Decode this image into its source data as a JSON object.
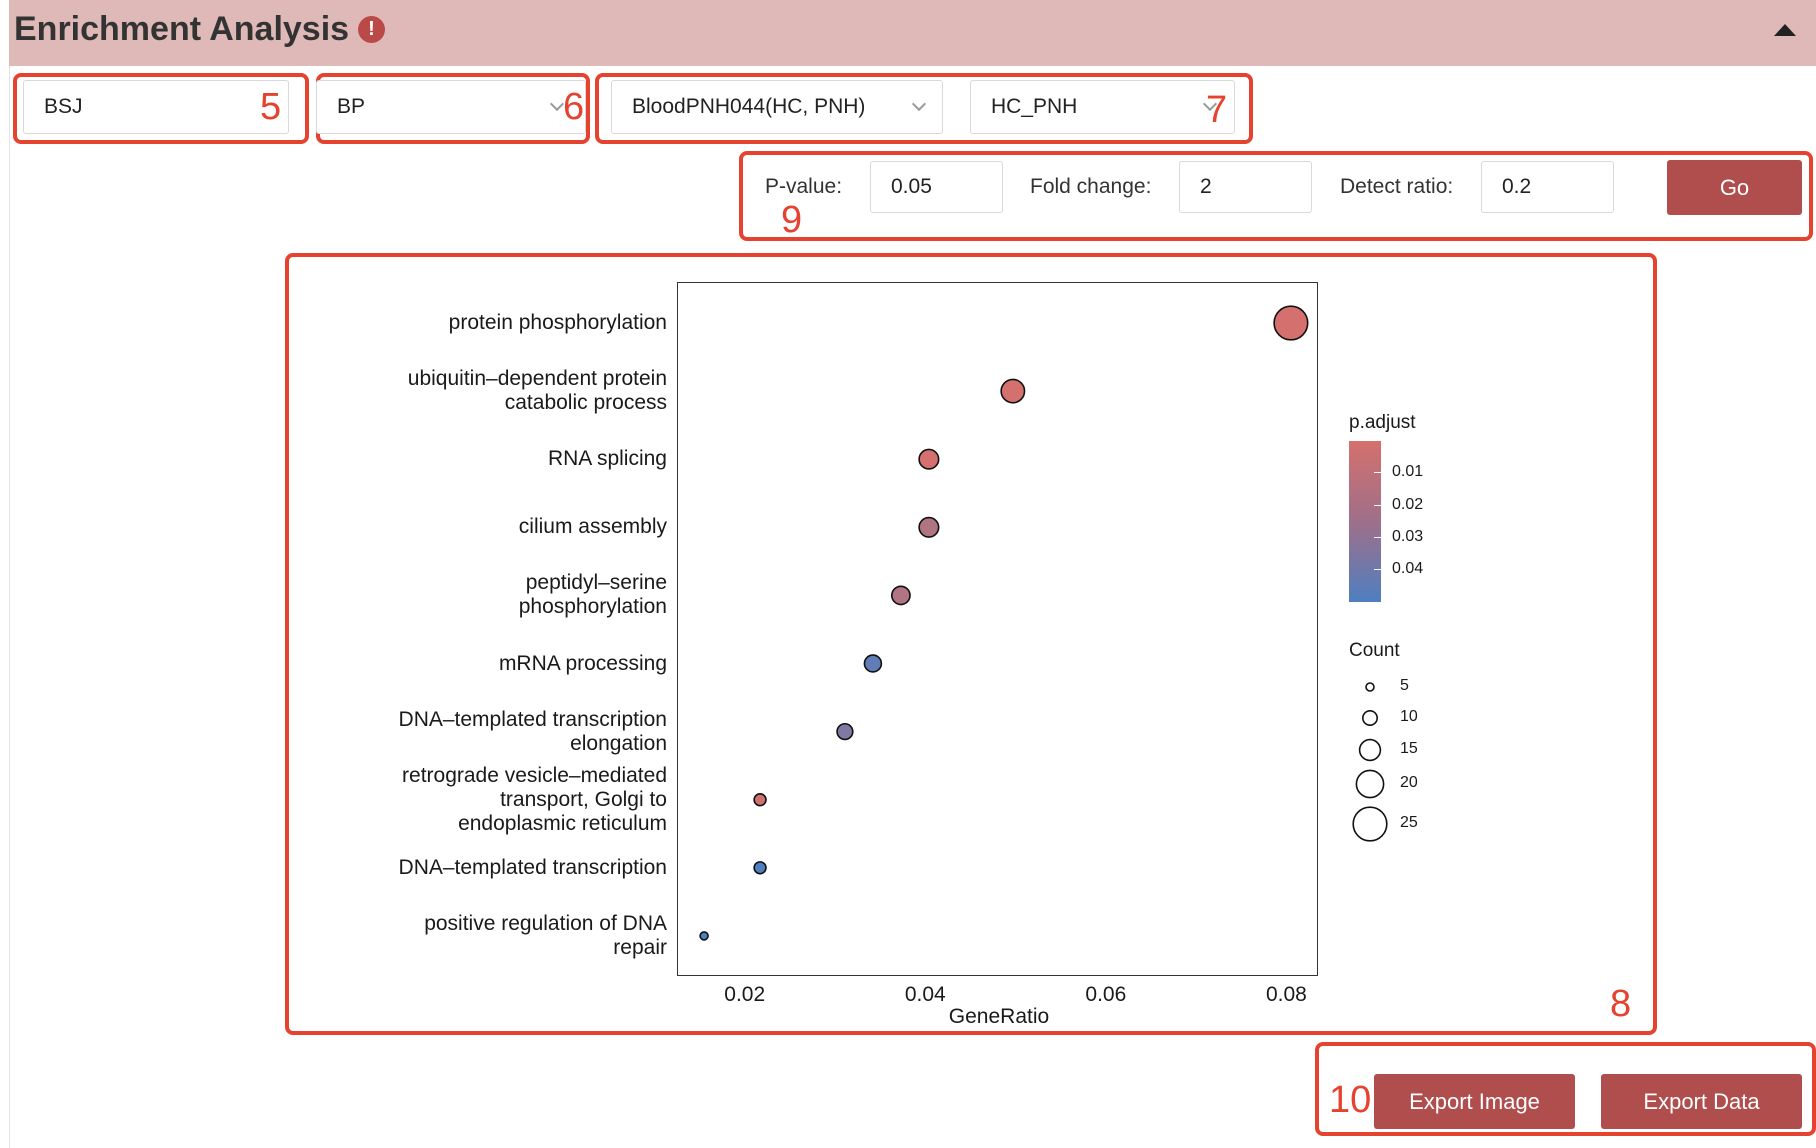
{
  "header": {
    "title": "Enrichment Analysis",
    "warn_glyph": "!"
  },
  "selects": {
    "type": "BSJ",
    "ontology": "BP",
    "dataset": "BloodPNH044(HC, PNH)",
    "comparison": "HC_PNH"
  },
  "filters": {
    "pvalue_label": "P-value:",
    "pvalue": "0.05",
    "fold_label": "Fold change:",
    "fold": "2",
    "detect_label": "Detect ratio:",
    "detect": "0.2",
    "go_label": "Go"
  },
  "markers": {
    "m5": "5",
    "m6": "6",
    "m7": "7",
    "m8": "8",
    "m9": "9",
    "m10": "10"
  },
  "buttons": {
    "export_image": "Export Image",
    "export_data": "Export Data"
  },
  "icons": {
    "warning": "exclamation-circle-icon",
    "collapse": "triangle-up-icon",
    "dropdown": "chevron-down-icon"
  },
  "colors": {
    "accent": "#b04d4d",
    "header_bg": "#dfb8b8",
    "annotation": "#e5432f",
    "low_padj": "#d4706d",
    "high_padj": "#4f7fc0"
  },
  "chart_data": {
    "type": "scatter",
    "xlabel": "GeneRatio",
    "xlim": [
      0.0125,
      0.0835
    ],
    "xticks": [
      "0.02",
      "0.04",
      "0.06",
      "0.08"
    ],
    "legend_color_title": "p.adjust",
    "legend_color_ticks": [
      "0.01",
      "0.02",
      "0.03",
      "0.04"
    ],
    "legend_size_title": "Count",
    "legend_size_ticks": [
      "5",
      "10",
      "15",
      "20",
      "25"
    ],
    "points": [
      {
        "term": "protein phosphorylation",
        "gene_ratio": 0.0805,
        "count": 25,
        "p_adjust": 0.008
      },
      {
        "term": "ubiquitin–dependent protein catabolic process",
        "gene_ratio": 0.0497,
        "count": 17,
        "p_adjust": 0.008
      },
      {
        "term": "RNA splicing",
        "gene_ratio": 0.0404,
        "count": 14,
        "p_adjust": 0.008
      },
      {
        "term": "cilium assembly",
        "gene_ratio": 0.0404,
        "count": 14,
        "p_adjust": 0.018
      },
      {
        "term": "peptidyl–serine phosphorylation",
        "gene_ratio": 0.0373,
        "count": 13,
        "p_adjust": 0.018
      },
      {
        "term": "mRNA processing",
        "gene_ratio": 0.0342,
        "count": 12,
        "p_adjust": 0.04
      },
      {
        "term": "DNA–templated transcription elongation",
        "gene_ratio": 0.0311,
        "count": 11,
        "p_adjust": 0.032
      },
      {
        "term": "retrograde vesicle–mediated transport, Golgi to endoplasmic reticulum",
        "gene_ratio": 0.0217,
        "count": 8,
        "p_adjust": 0.01
      },
      {
        "term": "DNA–templated transcription",
        "gene_ratio": 0.0217,
        "count": 8,
        "p_adjust": 0.045
      },
      {
        "term": "positive regulation of DNA repair",
        "gene_ratio": 0.0155,
        "count": 5,
        "p_adjust": 0.045
      }
    ]
  }
}
